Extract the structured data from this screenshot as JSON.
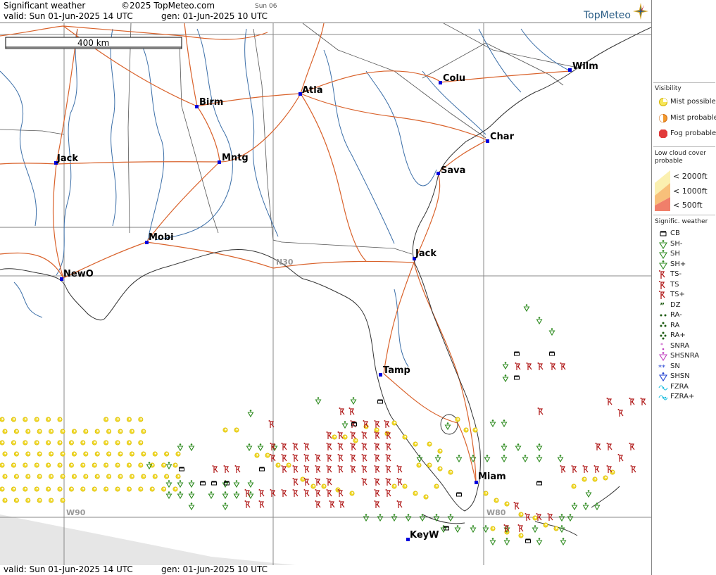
{
  "header": {
    "title": "Significant weather",
    "copyright": "©2025 TopMeteo.com",
    "day_tag": "Sun 06",
    "valid_text": "valid:  Sun  01-Jun-2025  14 UTC",
    "gen_text": "gen: 01-Jun-2025 10 UTC",
    "logo_text": "TopMeteo"
  },
  "footer": {
    "valid_text": "valid:  Sun  01-Jun-2025  14 UTC",
    "gen_text": "gen: 01-Jun-2025 10 UTC"
  },
  "map": {
    "scale_label": "400 km",
    "grid_labels": {
      "lat": "N30",
      "lon_west": "W90",
      "lon_east": "W80"
    },
    "cities": [
      {
        "name": "Wilm"
      },
      {
        "name": "Colu"
      },
      {
        "name": "Atla"
      },
      {
        "name": "Birm"
      },
      {
        "name": "Char"
      },
      {
        "name": "Sava"
      },
      {
        "name": "Jack"
      },
      {
        "name": "Mntg"
      },
      {
        "name": "Mobi"
      },
      {
        "name": "Jack"
      },
      {
        "name": "NewO"
      },
      {
        "name": "Tamp"
      },
      {
        "name": "Miam"
      },
      {
        "name": "KeyW"
      }
    ],
    "colors": {
      "roads": "#d9622b",
      "rivers": "#3c6fa8",
      "borders": "#555555",
      "coast": "#333333",
      "grid": "#888888",
      "shower": "#2e8b1f",
      "thunder": "#b01818",
      "mist": "#f2da2a",
      "cb": "#000000"
    }
  },
  "legend": {
    "visibility_title": "Visibility",
    "visibility_items": [
      "Mist possible",
      "Mist probable",
      "Fog probable"
    ],
    "lowcloud_title": "Low cloud cover probable",
    "lowcloud_items": [
      "<  2000ft",
      "<  1000ft",
      "<    500ft"
    ],
    "sigwx_title": "Signific. weather",
    "sigwx_items": [
      "CB",
      "SH-",
      "SH",
      "SH+",
      "TS-",
      "TS",
      "TS+",
      "DZ",
      "RA-",
      "RA",
      "RA+",
      "SNRA",
      "SHSNRA",
      "SN",
      "SHSN",
      "FZRA",
      "FZRA+"
    ]
  }
}
